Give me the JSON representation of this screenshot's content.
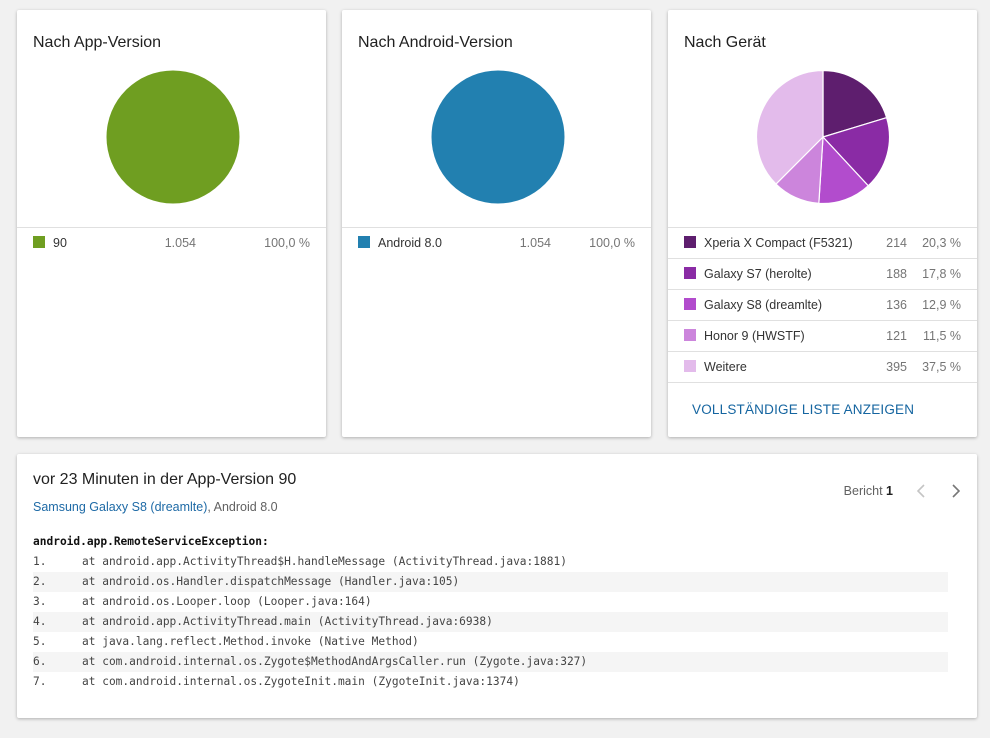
{
  "cards": {
    "app_version": {
      "title": "Nach App-Version",
      "rows": [
        {
          "label": "90",
          "count": "1.054",
          "pct": "100,0 %",
          "color": "#6f9e21"
        }
      ]
    },
    "android_version": {
      "title": "Nach Android-Version",
      "rows": [
        {
          "label": "Android 8.0",
          "count": "1.054",
          "pct": "100,0 %",
          "color": "#2280b0"
        }
      ]
    },
    "device": {
      "title": "Nach Gerät",
      "rows": [
        {
          "label": "Xperia X Compact (F5321)",
          "count": "214",
          "pct": "20,3 %",
          "color": "#5e1e6e"
        },
        {
          "label": "Galaxy S7 (herolte)",
          "count": "188",
          "pct": "17,8 %",
          "color": "#8a2ba5"
        },
        {
          "label": "Galaxy S8 (dreamlte)",
          "count": "136",
          "pct": "12,9 %",
          "color": "#b24ccd"
        },
        {
          "label": "Honor 9 (HWSTF)",
          "count": "121",
          "pct": "11,5 %",
          "color": "#cc85dc"
        },
        {
          "label": "Weitere",
          "count": "395",
          "pct": "37,5 %",
          "color": "#e3bbeb"
        }
      ],
      "link_label": "VOLLSTÄNDIGE LISTE ANZEIGEN"
    }
  },
  "chart_data": [
    {
      "type": "pie",
      "title": "Nach App-Version",
      "labels": [
        "90"
      ],
      "values": [
        100.0
      ],
      "colors": [
        "#6f9e21"
      ]
    },
    {
      "type": "pie",
      "title": "Nach Android-Version",
      "labels": [
        "Android 8.0"
      ],
      "values": [
        100.0
      ],
      "colors": [
        "#2280b0"
      ]
    },
    {
      "type": "pie",
      "title": "Nach Gerät",
      "labels": [
        "Xperia X Compact (F5321)",
        "Galaxy S7 (herolte)",
        "Galaxy S8 (dreamlte)",
        "Honor 9 (HWSTF)",
        "Weitere"
      ],
      "values": [
        20.3,
        17.8,
        12.9,
        11.5,
        37.5
      ],
      "colors": [
        "#5e1e6e",
        "#8a2ba5",
        "#b24ccd",
        "#cc85dc",
        "#e3bbeb"
      ]
    }
  ],
  "report": {
    "title": "vor 23 Minuten in der App-Version 90",
    "device_link": "Samsung Galaxy S8 (dreamlte)",
    "android": ", Android 8.0",
    "pager_label": "Bericht",
    "pager_num": "1",
    "exception": "android.app.RemoteServiceException:",
    "lines": [
      {
        "num": "1.",
        "text": "at android.app.ActivityThread$H.handleMessage (ActivityThread.java:1881)"
      },
      {
        "num": "2.",
        "text": "at android.os.Handler.dispatchMessage (Handler.java:105)"
      },
      {
        "num": "3.",
        "text": "at android.os.Looper.loop (Looper.java:164)"
      },
      {
        "num": "4.",
        "text": "at android.app.ActivityThread.main (ActivityThread.java:6938)"
      },
      {
        "num": "5.",
        "text": "at java.lang.reflect.Method.invoke (Native Method)"
      },
      {
        "num": "6.",
        "text": "at com.android.internal.os.Zygote$MethodAndArgsCaller.run (Zygote.java:327)"
      },
      {
        "num": "7.",
        "text": "at com.android.internal.os.ZygoteInit.main (ZygoteInit.java:1374)"
      }
    ]
  }
}
